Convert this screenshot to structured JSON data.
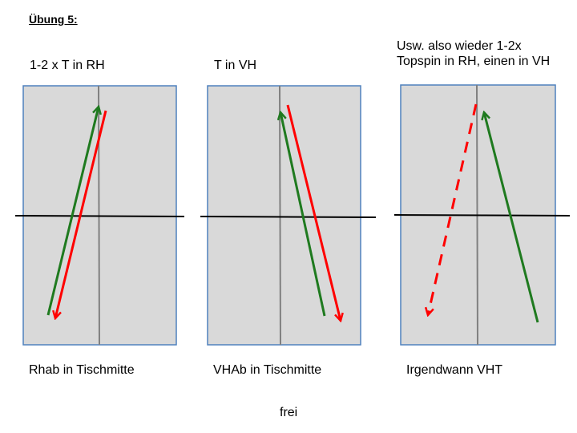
{
  "title": "Übung 5:",
  "panels": [
    {
      "header": [
        "1-2 x T in RH"
      ],
      "footer": "Rhab in Tischmitte",
      "arrows": [
        {
          "color": "#1f7a1f",
          "style": "solid"
        },
        {
          "color": "#ff0000",
          "style": "solid"
        }
      ]
    },
    {
      "header": [
        "T in VH"
      ],
      "footer": "VHAb in Tischmitte",
      "arrows": [
        {
          "color": "#1f7a1f",
          "style": "solid"
        },
        {
          "color": "#ff0000",
          "style": "solid"
        }
      ]
    },
    {
      "header": [
        "Usw. also wieder 1-2x",
        "Topspin in RH, einen in VH"
      ],
      "footer": "Irgendwann VHT",
      "arrows": [
        {
          "color": "#ff0000",
          "style": "dashed"
        },
        {
          "color": "#1f7a1f",
          "style": "solid"
        }
      ]
    }
  ],
  "bottom_label": "frei",
  "colors": {
    "table_fill": "#d9d9d9",
    "table_border": "#4f81bd",
    "center_line": "#808080",
    "net_line": "#000000",
    "green": "#1f7a1f",
    "red": "#ff0000"
  }
}
